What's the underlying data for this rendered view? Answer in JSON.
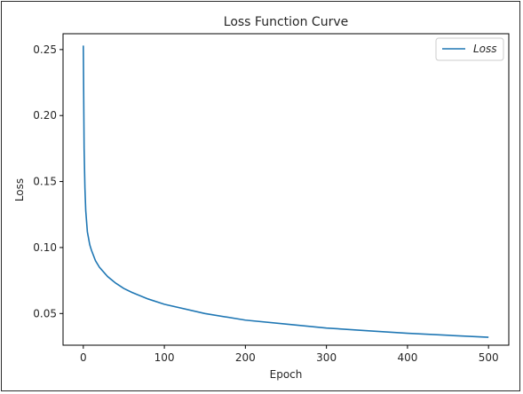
{
  "chart_data": {
    "type": "line",
    "title": "Loss Function Curve",
    "xlabel": "Epoch",
    "ylabel": "Loss",
    "xlim": [
      -25,
      525
    ],
    "ylim": [
      0.026,
      0.262
    ],
    "xticks": [
      0,
      100,
      200,
      300,
      400,
      500
    ],
    "xtick_labels": [
      "0",
      "100",
      "200",
      "300",
      "400",
      "500"
    ],
    "yticks": [
      0.05,
      0.1,
      0.15,
      0.2,
      0.25
    ],
    "ytick_labels": [
      "0.05",
      "0.10",
      "0.15",
      "0.20",
      "0.25"
    ],
    "grid": false,
    "legend": {
      "position": "upper right",
      "entries": [
        "Loss"
      ]
    },
    "series": [
      {
        "name": "Loss",
        "color": "#1f77b4",
        "x": [
          0,
          1,
          2,
          3,
          5,
          8,
          10,
          15,
          20,
          30,
          40,
          50,
          60,
          80,
          100,
          150,
          200,
          250,
          300,
          350,
          400,
          450,
          500
        ],
        "y": [
          0.253,
          0.175,
          0.145,
          0.128,
          0.112,
          0.102,
          0.098,
          0.09,
          0.085,
          0.078,
          0.073,
          0.069,
          0.066,
          0.061,
          0.057,
          0.05,
          0.045,
          0.042,
          0.039,
          0.037,
          0.035,
          0.0335,
          0.032
        ]
      }
    ]
  }
}
